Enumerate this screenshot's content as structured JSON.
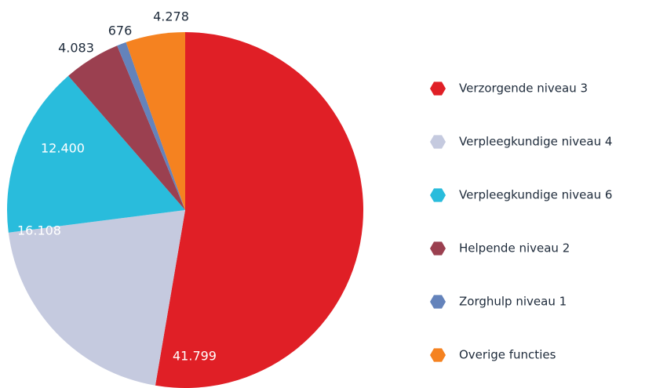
{
  "chart_data": {
    "type": "pie",
    "categories": [
      "Verzorgende niveau 3",
      "Verpleegkundige niveau 4",
      "Verpleegkundige niveau 6",
      "Helpende niveau 2",
      "Zorghulp niveau 1",
      "Overige functies"
    ],
    "values": [
      41799,
      16108,
      12400,
      4083,
      676,
      4278
    ],
    "value_labels": [
      "41.799",
      "16.108",
      "12.400",
      "4.083",
      "676",
      "4.278"
    ],
    "colors": [
      "#e01f26",
      "#c5cadf",
      "#29bcdc",
      "#9b4050",
      "#6483bb",
      "#f58220"
    ],
    "legend": "right"
  }
}
